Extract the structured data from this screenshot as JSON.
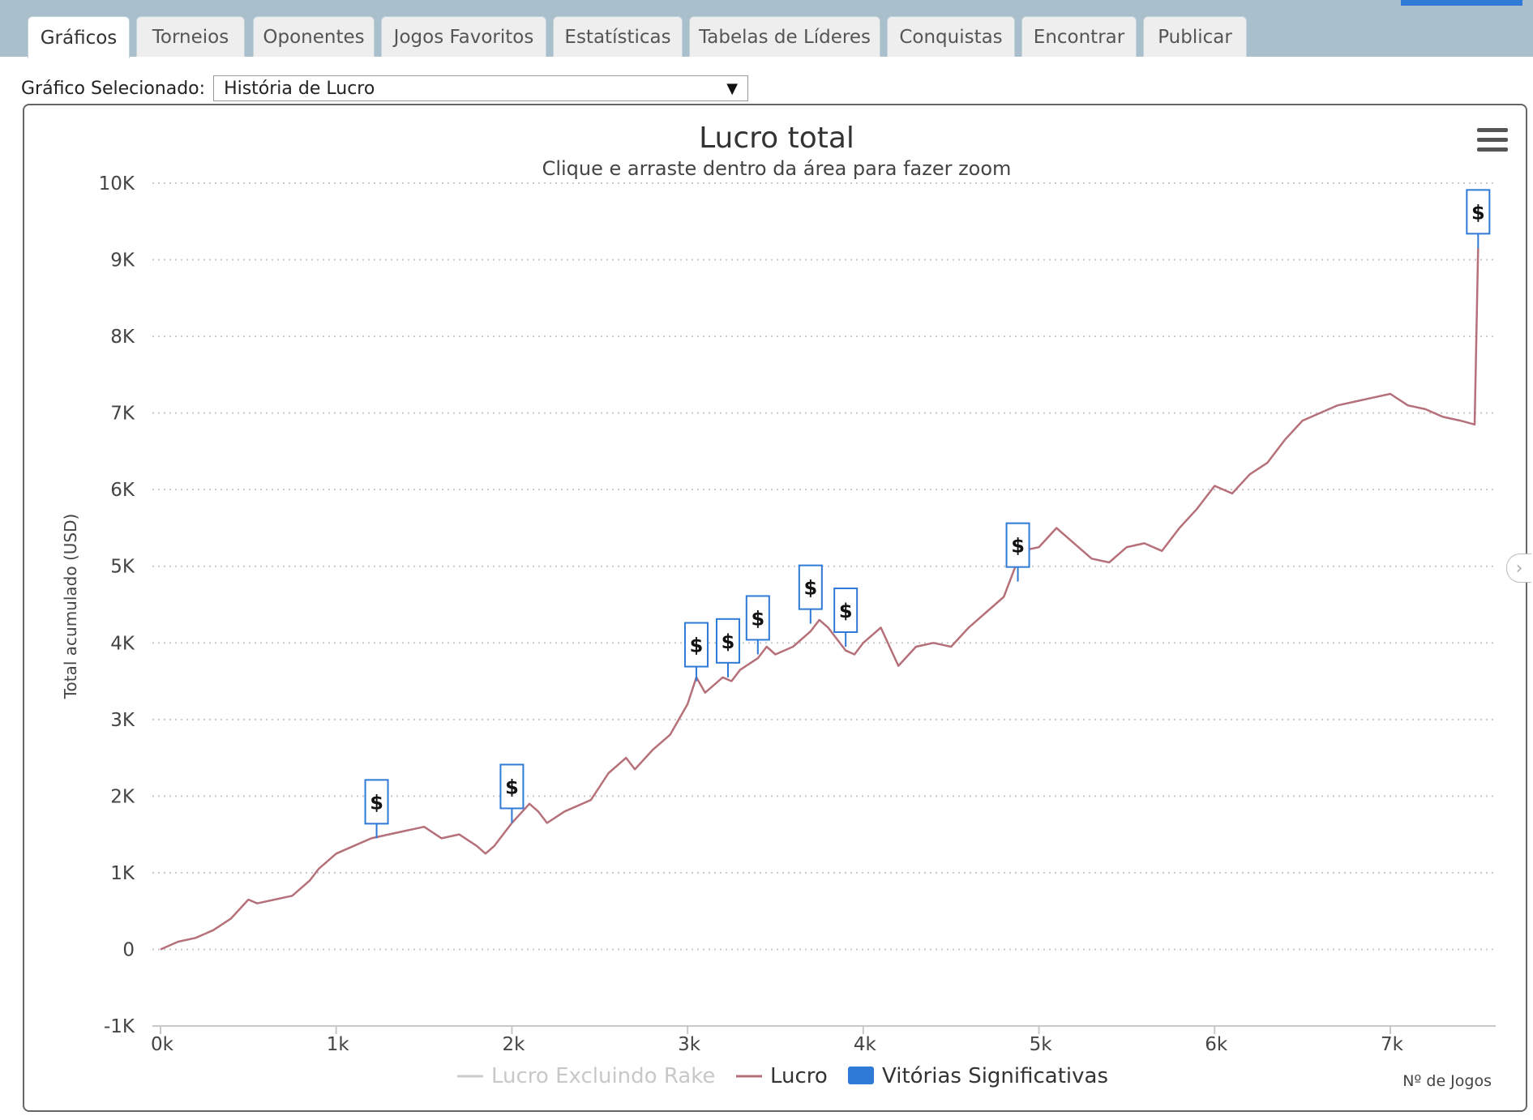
{
  "tabs": [
    {
      "label": "Gráficos",
      "active": true
    },
    {
      "label": "Torneios",
      "active": false
    },
    {
      "label": "Oponentes",
      "active": false
    },
    {
      "label": "Jogos Favoritos",
      "active": false
    },
    {
      "label": "Estatísticas",
      "active": false
    },
    {
      "label": "Tabelas de Líderes",
      "active": false
    },
    {
      "label": "Conquistas",
      "active": false
    },
    {
      "label": "Encontrar",
      "active": false
    },
    {
      "label": "Publicar",
      "active": false
    }
  ],
  "selector": {
    "label": "Gráfico Selecionado:",
    "value": "História de Lucro"
  },
  "icons": {
    "menu": "hamburger-menu-icon",
    "dropdown": "triangle-down-icon",
    "scroll": "chevron-right-icon",
    "marker": "dollar-sign"
  },
  "colors": {
    "profit_line": "#b5707a",
    "rakeless_line": "#cccccc",
    "significant_wins": "#2f7ad6",
    "marker_border": "#2f7ad6",
    "grid": "#c8c8c8"
  },
  "chart_data": {
    "type": "line",
    "title": "Lucro total",
    "subtitle": "Clique e arraste dentro da área para fazer zoom",
    "ylabel": "Total acumulado (USD)",
    "xlabel": "Nº de Jogos",
    "ylim": [
      -1000,
      10000
    ],
    "xlim": [
      0,
      7600
    ],
    "y_ticks": [
      -1000,
      0,
      1000,
      2000,
      3000,
      4000,
      5000,
      6000,
      7000,
      8000,
      9000,
      10000
    ],
    "y_tick_labels": [
      "-1K",
      "0",
      "1K",
      "2K",
      "3K",
      "4K",
      "5K",
      "6K",
      "7K",
      "8K",
      "9K",
      "10K"
    ],
    "x_ticks": [
      0,
      1000,
      2000,
      3000,
      4000,
      5000,
      6000,
      7000
    ],
    "x_tick_labels": [
      "0k",
      "1k",
      "2k",
      "3k",
      "4k",
      "5k",
      "6k",
      "7k"
    ],
    "grid": "horizontal dotted",
    "legend_position": "bottom-center",
    "legend": [
      {
        "name": "Lucro Excluindo Rake",
        "kind": "line",
        "color": "#cccccc",
        "enabled": false
      },
      {
        "name": "Lucro",
        "kind": "line",
        "color": "#b5707a",
        "enabled": true
      },
      {
        "name": "Vitórias Significativas",
        "kind": "box",
        "color": "#2f7ad6",
        "enabled": true
      }
    ],
    "series": [
      {
        "name": "Lucro",
        "x": [
          0,
          100,
          200,
          300,
          400,
          500,
          550,
          650,
          750,
          850,
          900,
          1000,
          1100,
          1200,
          1300,
          1400,
          1500,
          1600,
          1700,
          1800,
          1850,
          1900,
          2000,
          2100,
          2150,
          2200,
          2300,
          2450,
          2550,
          2650,
          2700,
          2800,
          2900,
          3000,
          3050,
          3100,
          3200,
          3250,
          3300,
          3400,
          3450,
          3500,
          3600,
          3700,
          3750,
          3800,
          3850,
          3900,
          3950,
          4000,
          4100,
          4200,
          4300,
          4400,
          4500,
          4600,
          4700,
          4800,
          4850,
          4900,
          5000,
          5100,
          5200,
          5300,
          5400,
          5500,
          5600,
          5700,
          5800,
          5900,
          6000,
          6100,
          6200,
          6300,
          6400,
          6500,
          6600,
          6700,
          6800,
          6900,
          7000,
          7100,
          7200,
          7300,
          7400,
          7480,
          7500
        ],
        "values": [
          0,
          100,
          150,
          250,
          400,
          650,
          600,
          650,
          700,
          900,
          1050,
          1250,
          1350,
          1450,
          1500,
          1550,
          1600,
          1450,
          1500,
          1350,
          1250,
          1350,
          1650,
          1900,
          1800,
          1650,
          1800,
          1950,
          2300,
          2500,
          2350,
          2600,
          2800,
          3200,
          3550,
          3350,
          3550,
          3500,
          3650,
          3800,
          3950,
          3850,
          3950,
          4150,
          4300,
          4200,
          4050,
          3900,
          3850,
          4000,
          4200,
          3700,
          3950,
          4000,
          3950,
          4200,
          4400,
          4600,
          4900,
          5200,
          5250,
          5500,
          5300,
          5100,
          5050,
          5250,
          5300,
          5200,
          5500,
          5750,
          6050,
          5950,
          6200,
          6350,
          6650,
          6900,
          7000,
          7100,
          7150,
          7200,
          7250,
          7100,
          7050,
          6950,
          6900,
          6850,
          9150
        ]
      }
    ],
    "significant_wins": [
      {
        "x": 1230,
        "y": 1450
      },
      {
        "x": 2000,
        "y": 1650
      },
      {
        "x": 3050,
        "y": 3500
      },
      {
        "x": 3230,
        "y": 3550
      },
      {
        "x": 3400,
        "y": 3850
      },
      {
        "x": 3700,
        "y": 4250
      },
      {
        "x": 3900,
        "y": 3950
      },
      {
        "x": 4880,
        "y": 4800
      },
      {
        "x": 7500,
        "y": 9150
      }
    ],
    "marker_label": "$"
  }
}
